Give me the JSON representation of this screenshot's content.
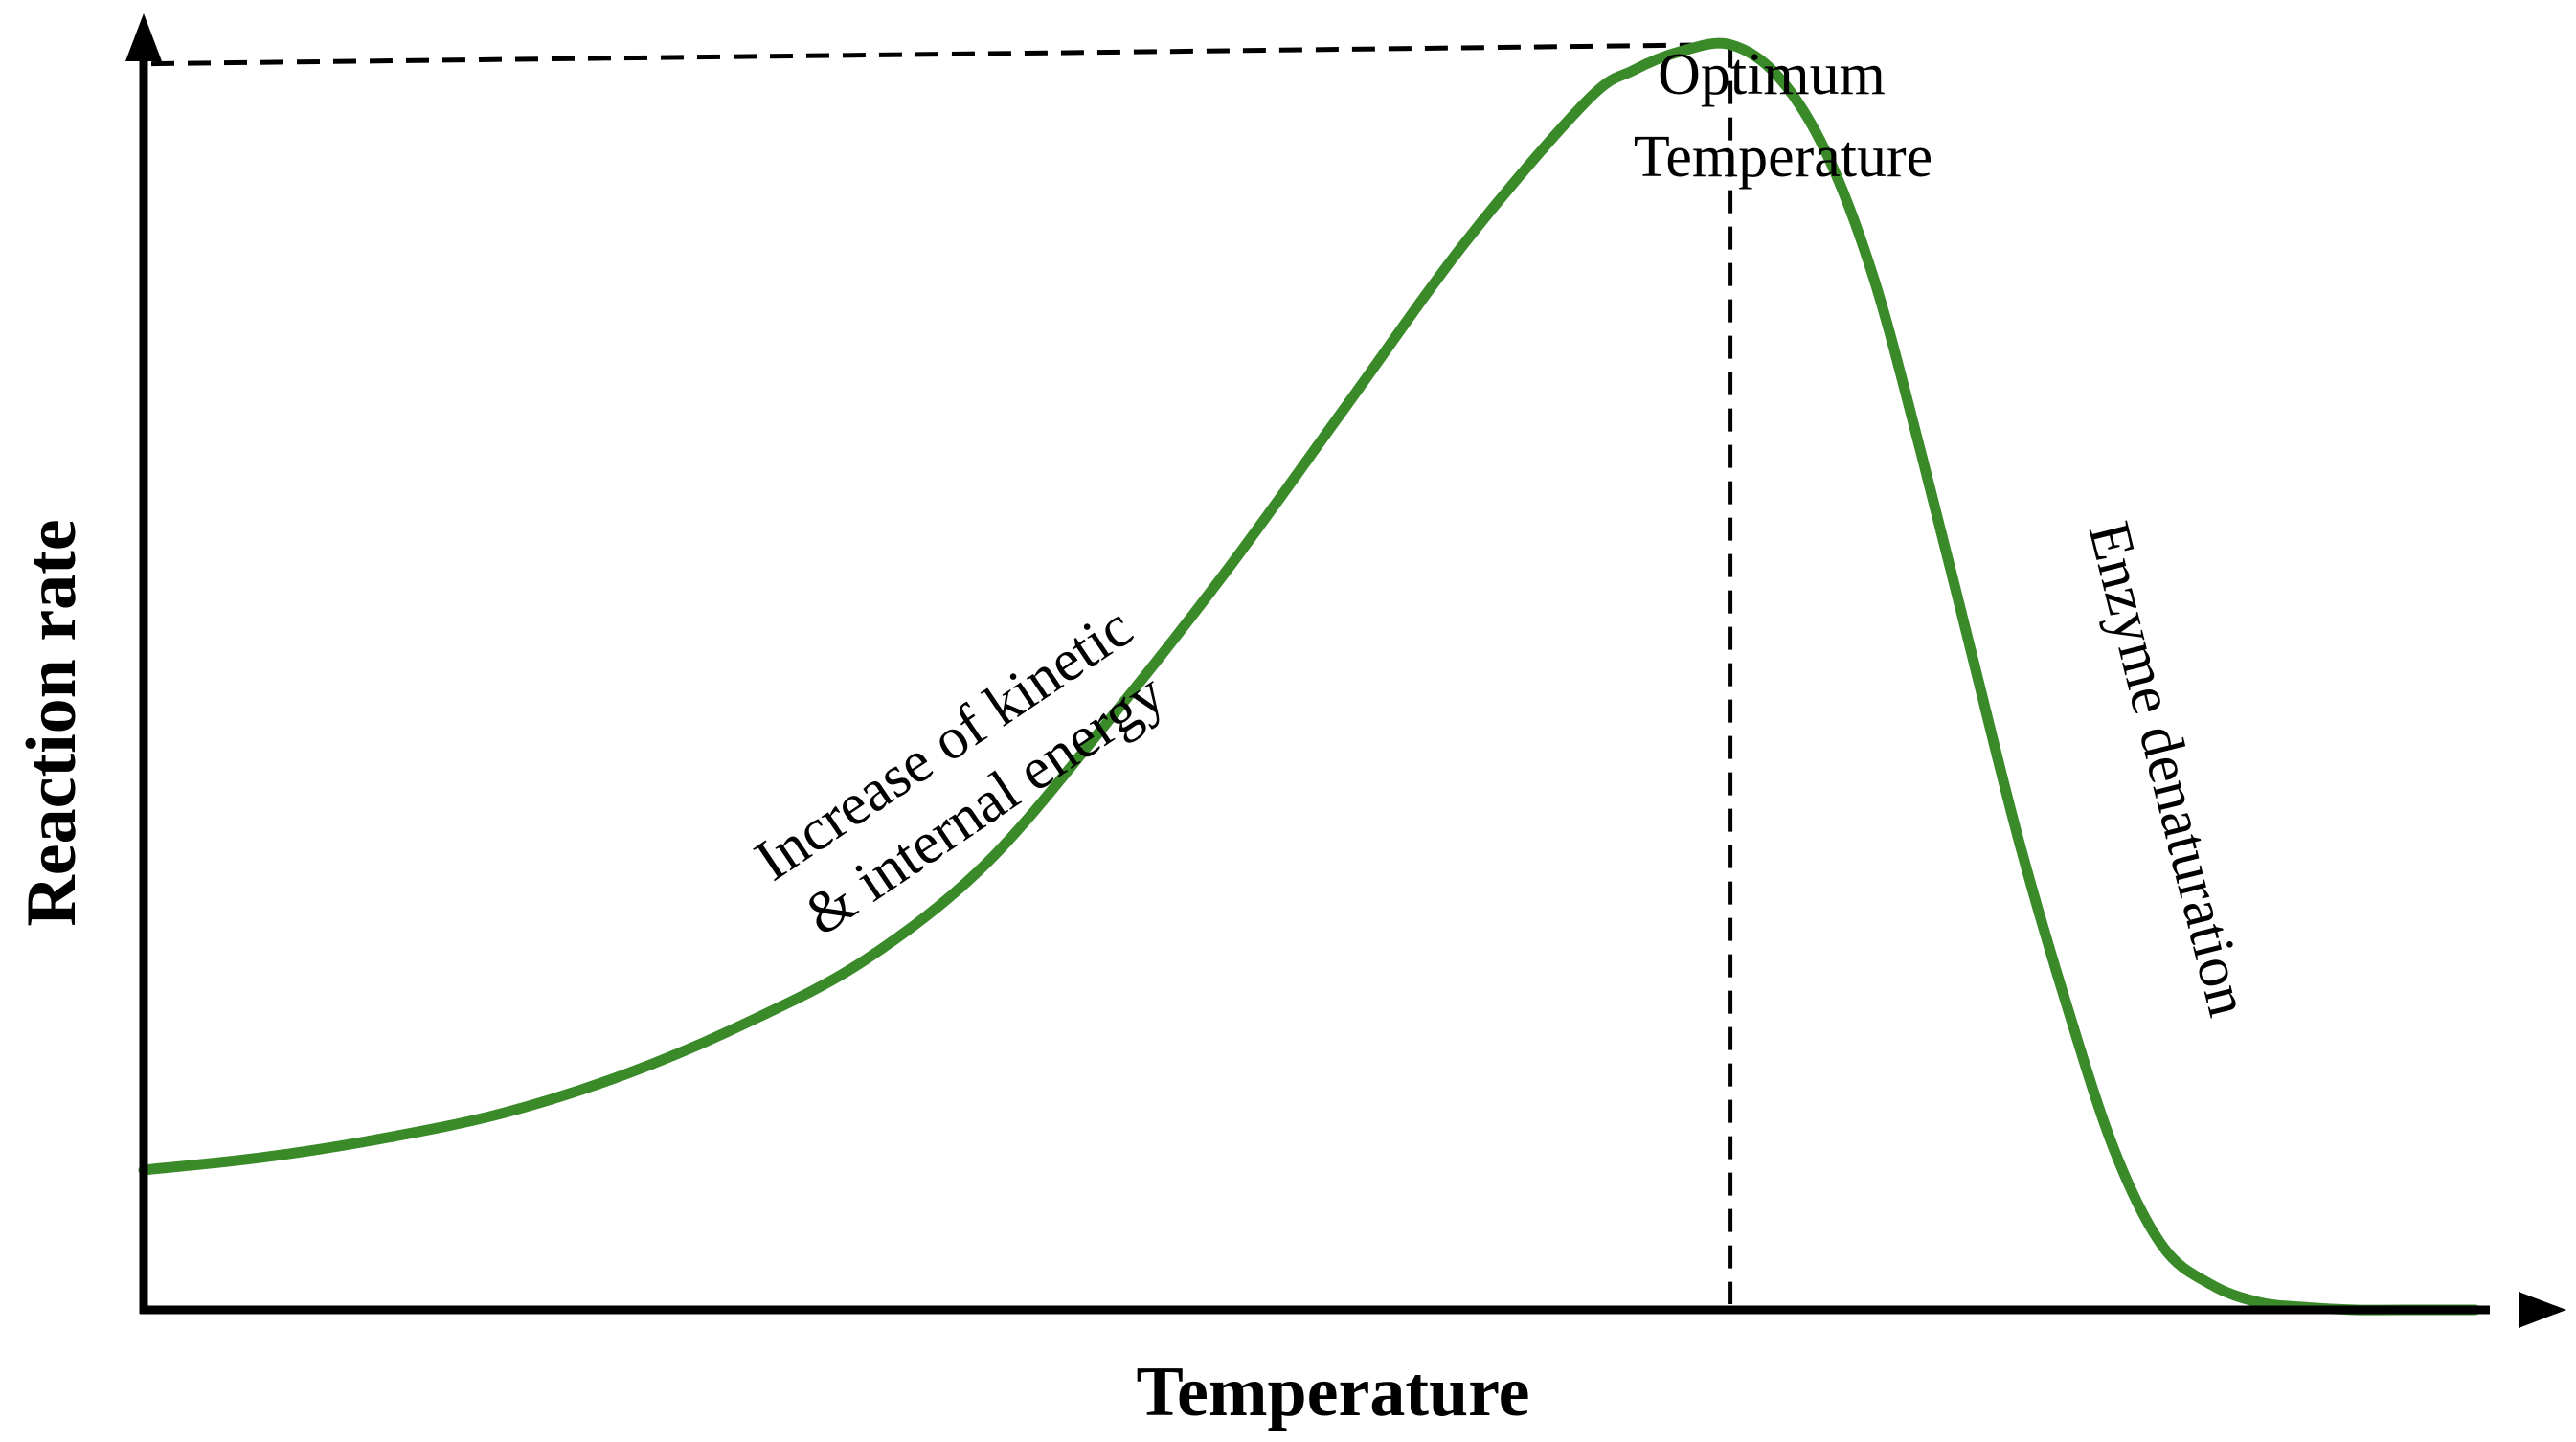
{
  "chart_data": {
    "type": "line",
    "title": "",
    "xlabel": "Temperature",
    "ylabel": "Reaction rate",
    "xlim": [
      0,
      100
    ],
    "ylim": [
      0,
      100
    ],
    "grid": false,
    "legend": "none",
    "ticks": false,
    "series": [
      {
        "color": "#3a8a2a",
        "x": [
          0,
          5,
          10,
          15,
          20,
          25,
          30,
          35,
          40,
          45,
          50,
          55,
          60,
          62,
          64,
          66,
          68,
          70,
          72,
          74,
          76,
          78,
          80,
          82,
          84,
          86,
          88,
          90,
          92,
          94,
          97
        ],
        "y": [
          11,
          12,
          13.5,
          15.5,
          18.5,
          22.5,
          27.5,
          35,
          46,
          58,
          71,
          84,
          95,
          97.5,
          99,
          99.5,
          97,
          91,
          81,
          67,
          52,
          37,
          24,
          12.5,
          5,
          2,
          0.6,
          0.2,
          0,
          0,
          0
        ]
      }
    ],
    "reference_lines": {
      "peak_x": 66,
      "peak_y": 99.5,
      "style": "dashed"
    },
    "annotations": [
      {
        "lines": [
          "Optimum",
          "Temperature"
        ]
      },
      {
        "lines": [
          "Increase of kinetic",
          "& internal energy"
        ]
      },
      {
        "lines": [
          "Enzyme denaturation"
        ]
      }
    ]
  }
}
